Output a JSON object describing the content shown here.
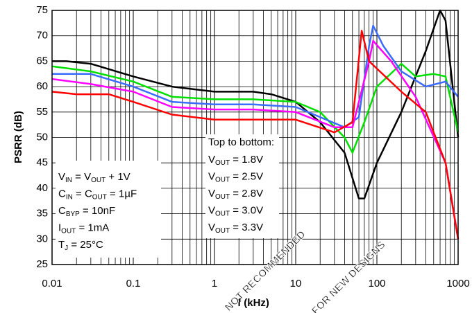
{
  "chart_data": {
    "type": "line",
    "xlabel": "f (kHz)",
    "ylabel": "PSRR (dB)",
    "xscale": "log",
    "xlim": [
      0.01,
      1000
    ],
    "ylim": [
      25,
      75
    ],
    "xticks": [
      0.01,
      0.1,
      1,
      10,
      100,
      1000
    ],
    "yticks": [
      25,
      30,
      35,
      40,
      45,
      50,
      55,
      60,
      65,
      70,
      75
    ],
    "grid": true,
    "minor_grid": true,
    "legend_title": "Top to bottom:",
    "series": [
      {
        "name": [
          {
            "t": "V"
          },
          {
            "sub": "OUT"
          },
          {
            "t": " = 1.8V"
          }
        ],
        "color": "#000000",
        "x": [
          0.01,
          0.015,
          0.03,
          0.1,
          0.3,
          1,
          3,
          5,
          10,
          20,
          40,
          60,
          70,
          100,
          200,
          400,
          600,
          700,
          1000
        ],
        "values": [
          65,
          65,
          64.5,
          62,
          60,
          59,
          59,
          58.5,
          57,
          53,
          47,
          38,
          38,
          45,
          55,
          67,
          75,
          73,
          50
        ]
      },
      {
        "name": [
          {
            "t": "V"
          },
          {
            "sub": "OUT"
          },
          {
            "t": " = 2.5V"
          }
        ],
        "color": "#00e000",
        "x": [
          0.01,
          0.03,
          0.1,
          0.3,
          1,
          3,
          10,
          20,
          40,
          50,
          70,
          100,
          200,
          300,
          500,
          700,
          1000
        ],
        "values": [
          64,
          63,
          61,
          58,
          57.5,
          57.5,
          57,
          55,
          50,
          47,
          53,
          60,
          64.5,
          62,
          62.5,
          62,
          51
        ]
      },
      {
        "name": [
          {
            "t": "V"
          },
          {
            "sub": "OUT"
          },
          {
            "t": " = 2.8V"
          }
        ],
        "color": "#3c6cff",
        "x": [
          0.01,
          0.03,
          0.1,
          0.3,
          1,
          3,
          10,
          20,
          40,
          60,
          80,
          90,
          120,
          200,
          400,
          700,
          1000
        ],
        "values": [
          62.5,
          62.5,
          60,
          57,
          56.5,
          56.5,
          56,
          54,
          52,
          54,
          68,
          72,
          68,
          63,
          60,
          61,
          58
        ]
      },
      {
        "name": [
          {
            "t": "V"
          },
          {
            "sub": "OUT"
          },
          {
            "t": " = 3.0V"
          }
        ],
        "color": "#ff00ff",
        "x": [
          0.01,
          0.03,
          0.1,
          0.3,
          1,
          3,
          10,
          30,
          50,
          80,
          90,
          150,
          300,
          700,
          1000
        ],
        "values": [
          61.5,
          60.5,
          59,
          56,
          55.5,
          55.5,
          55,
          52,
          52,
          65,
          69,
          65,
          58,
          45,
          30
        ]
      },
      {
        "name": [
          {
            "t": "V"
          },
          {
            "sub": "OUT"
          },
          {
            "t": " = 3.3V"
          }
        ],
        "color": "#ff0000",
        "x": [
          0.01,
          0.02,
          0.05,
          0.1,
          0.3,
          1,
          3,
          10,
          30,
          50,
          65,
          80,
          200,
          400,
          700,
          1000
        ],
        "values": [
          59,
          58.5,
          58.5,
          57,
          54.5,
          53.5,
          53.5,
          53.5,
          51,
          53,
          71,
          65,
          59,
          55,
          45,
          30
        ]
      }
    ],
    "annotations": [
      [
        {
          "t": "V"
        },
        {
          "sub": "IN"
        },
        {
          "t": " = V"
        },
        {
          "sub": "OUT"
        },
        {
          "t": " + 1V"
        }
      ],
      [
        {
          "t": "C"
        },
        {
          "sub": "IN"
        },
        {
          "t": " = C"
        },
        {
          "sub": "OUT"
        },
        {
          "t": " = 1µF"
        }
      ],
      [
        {
          "t": "C"
        },
        {
          "sub": "BYP"
        },
        {
          "t": " = 10nF"
        }
      ],
      [
        {
          "t": "I"
        },
        {
          "sub": "OUT"
        },
        {
          "t": " = 1mA"
        }
      ],
      [
        {
          "t": "T"
        },
        {
          "sub": "J"
        },
        {
          "t": " = 25°C"
        }
      ]
    ],
    "watermark": [
      "NOT RECOMMENDED",
      "FOR NEW DESIGNS"
    ]
  }
}
